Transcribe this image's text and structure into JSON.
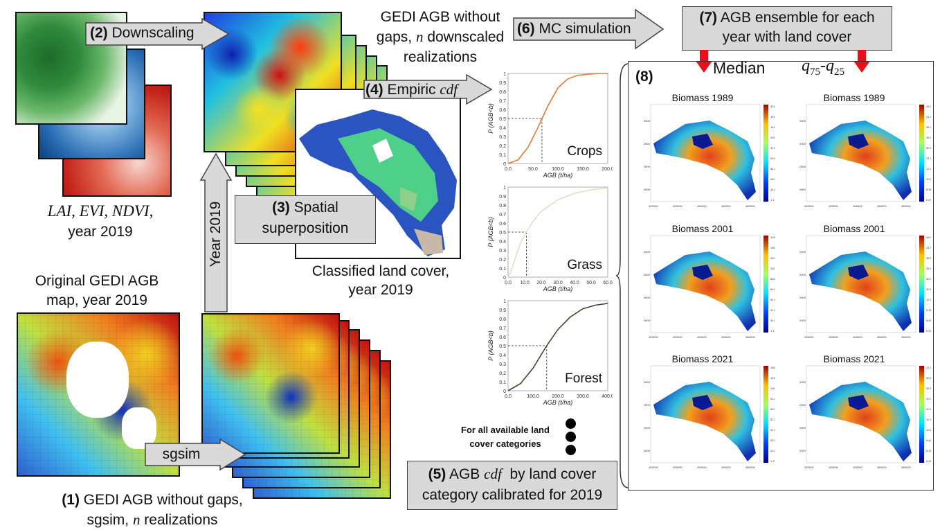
{
  "inputs": {
    "indices_label_italic": "LAI, EVI, NDVI,",
    "indices_label_year": "year 2019",
    "original_title_line1": "Original GEDI AGB",
    "original_title_line2": "map, year 2019"
  },
  "steps": {
    "downscaling": {
      "number": "(2)",
      "label": "Downscaling"
    },
    "year_arrow": "Year 2019",
    "gedi_no_gaps_line1": "GEDI AGB without",
    "gedi_no_gaps_line2_pre": "gaps, ",
    "gedi_no_gaps_line2_n": "n",
    "gedi_no_gaps_line2_post": " downscaled",
    "gedi_no_gaps_line3": "realizations",
    "mc": {
      "number": "(6)",
      "label": "MC simulation"
    },
    "empiric": {
      "number": "(4)",
      "label": "Empiric ",
      "label_italic": "cdf"
    },
    "spatial": {
      "number": "(3)",
      "label_line1": "Spatial",
      "label_line2": "superposition"
    },
    "classified_line1": "Classified land cover,",
    "classified_line2": "year 2019",
    "sgsim": "sgsim",
    "step1_number": "(1)",
    "step1_line1": "GEDI AGB without gaps,",
    "step1_line2_pre": "sgsim, ",
    "step1_line2_n": "n",
    "step1_line2_post": " realizations",
    "ensemble": {
      "number": "(7)",
      "label_line1": "AGB ensemble for each",
      "label_line2": "year with land cover"
    },
    "median": "Median",
    "iqr": "q75-q25",
    "iqr_q": "q",
    "iqr_sub1": "75",
    "iqr_dash": "-",
    "iqr_sub2": "25",
    "step8": "(8)",
    "for_all_line1": "For all available land",
    "for_all_line2": "cover categories",
    "cdf_box": {
      "number": "(5)",
      "label_pre": "AGB ",
      "label_italic": "cdf",
      "label_post": "  by land cover",
      "line2": "category calibrated for 2019"
    }
  },
  "chart_data": [
    {
      "type": "line",
      "label": "Crops",
      "ylabel": "P (AGB<b)",
      "xlabel": "AGB (t/ha)",
      "xlim": [
        0,
        200
      ],
      "ylim": [
        0,
        1
      ],
      "xticks": [
        "0.0",
        "50.0",
        "100.0",
        "150.0",
        "200.0"
      ],
      "yticks": [
        "0",
        "0.1",
        "0.2",
        "0.3",
        "0.4",
        "0.5",
        "0.6",
        "0.7",
        "0.8",
        "0.9",
        "1"
      ],
      "color": "#e07b3a",
      "median_x": 68,
      "x": [
        0,
        20,
        40,
        60,
        68,
        80,
        100,
        120,
        140,
        160,
        180,
        200
      ],
      "y": [
        0.0,
        0.04,
        0.18,
        0.4,
        0.5,
        0.64,
        0.84,
        0.94,
        0.98,
        0.99,
        1.0,
        1.0
      ]
    },
    {
      "type": "line",
      "label": "Grass",
      "ylabel": "P (AGB<b)",
      "xlabel": "AGB (t/ha)",
      "xlim": [
        0,
        60
      ],
      "ylim": [
        0,
        1
      ],
      "xticks": [
        "0.0",
        "10.0",
        "20.0",
        "30.0",
        "40.0",
        "50.0",
        "60.0"
      ],
      "yticks": [
        "0",
        "0.1",
        "0.2",
        "0.3",
        "0.4",
        "0.5",
        "0.6",
        "0.7",
        "0.8",
        "0.9",
        "1"
      ],
      "color": "#e8dccb",
      "median_x": 11,
      "x": [
        0,
        2,
        5,
        8,
        11,
        15,
        20,
        30,
        40,
        50,
        60
      ],
      "y": [
        0.0,
        0.08,
        0.25,
        0.4,
        0.5,
        0.62,
        0.73,
        0.86,
        0.93,
        0.97,
        0.99
      ]
    },
    {
      "type": "line",
      "label": "Forest",
      "ylabel": "P (AGB<b)",
      "xlabel": "AGB (t/ha)",
      "xlim": [
        0,
        400
      ],
      "ylim": [
        0,
        1
      ],
      "xticks": [
        "0.0",
        "100.0",
        "200.0",
        "300.0",
        "400.0"
      ],
      "yticks": [
        "0",
        "0.1",
        "0.2",
        "0.3",
        "0.4",
        "0.5",
        "0.6",
        "0.7",
        "0.8",
        "0.9",
        "1"
      ],
      "color": "#3b4a2a",
      "median_x": 155,
      "x": [
        0,
        50,
        100,
        155,
        200,
        250,
        300,
        350,
        400
      ],
      "y": [
        0.0,
        0.08,
        0.25,
        0.5,
        0.68,
        0.82,
        0.91,
        0.95,
        0.97
      ]
    }
  ],
  "biomass_maps": {
    "median_col": [
      {
        "title": "Biomass 1989",
        "scale": [
          "324.1",
          "151.1",
          "142.7",
          "119.9",
          "91.6",
          "69.6",
          "54.4",
          "46.2",
          "44.6",
          "1.1"
        ]
      },
      {
        "title": "Biomass 2001",
        "scale": [
          "159.0",
          "150.9",
          "140.4",
          "110.4",
          "83.6",
          "66.1",
          "51.8",
          "47.8",
          "44.3",
          "1.1"
        ]
      },
      {
        "title": "Biomass 2021",
        "scale": [
          "158.5",
          "149.6",
          "116.6",
          "91.3",
          "65.9",
          "57.3",
          "47.9",
          "45.1",
          "42.3",
          "1.3"
        ]
      }
    ],
    "iqr_col": [
      {
        "title": "Biomass 1989",
        "scale": [
          "48.31",
          "41.43",
          "38.78",
          "35.99",
          "30.61",
          "21.34",
          "12.93",
          "10.41",
          "8.98",
          "0.00"
        ]
      },
      {
        "title": "Biomass 2001",
        "scale": [
          "48.46",
          "41.30",
          "38.55",
          "35.52",
          "30.04",
          "20.50",
          "12.95",
          "9.99",
          "8.69",
          "0.00"
        ]
      },
      {
        "title": "Biomass 2021",
        "scale": [
          "47.22",
          "39.67",
          "35.53",
          "29.07",
          "20.55",
          "12.98",
          "10.84",
          "9.60",
          "8.39",
          "0.00"
        ]
      }
    ],
    "y_ticks": [
      "1060000",
      "1050000",
      "1040000",
      "1030000"
    ],
    "x_ticks": [
      "820000",
      "830000",
      "840000",
      "850000",
      "860000"
    ]
  },
  "colors": {
    "box_fill": "#d9d9d9",
    "arrow_red": "#e8101a"
  }
}
